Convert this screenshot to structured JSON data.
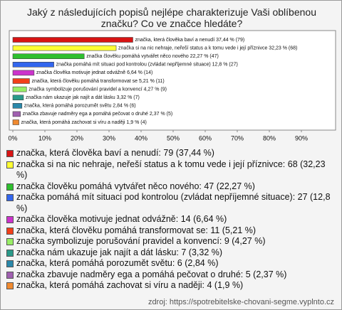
{
  "chart_data": {
    "type": "bar",
    "title": "Jaký z následujících popisů nejlépe charakterizuje Vaši oblíbenou značku? Co ve značce hledáte?",
    "values": [
      37.44,
      32.23,
      22.27,
      12.8,
      6.64,
      5.21,
      4.27,
      3.32,
      2.84,
      2.37,
      1.9
    ],
    "value_labels": [
      "značka, která člověka baví a nenudí 37,44 % (79)",
      "značka si na nic nehraje, neřeší status a k tomu vede i její příznivce 32,23 % (68)",
      "značka člověku pomáhá vytvářet něco nového 22,27 % (47)",
      "značka pomáhá mít situaci pod kontrolou (zvládat nepříjemné situace) 12,8 % (27)",
      "značka člověka motivuje jednat odvážně 6,64 % (14)",
      "značka, která člověku pomáhá transformovat se 5,21 % (11)",
      "značka symbolizuje porušování pravidel a konvencí 4,27 % (9)",
      "značka nám ukazuje jak najít a dát lásku 3,32 % (7)",
      "značka, která pomáhá porozumět světu 2,84 % (6)",
      "značka zbavuje nadměry ega a pomáhá pečovat o druhé 2,37 % (5)",
      "značka, která pomáhá zachovat si víru a naději 1,9 % (4)"
    ],
    "colors": [
      "#d81414",
      "#ffff33",
      "#2fbf2f",
      "#3366ee",
      "#cc33cc",
      "#f2401a",
      "#99ee66",
      "#2a9a8a",
      "#2a88aa",
      "#a060b0",
      "#f08a30"
    ],
    "legend": [
      "značka, která člověka baví a nenudí: 79 (37,44 %)",
      "značka si na nic nehraje, neřeší status a k tomu vede i její příznivce: 68 (32,23 %)",
      "značka člověku pomáhá vytvářet něco nového: 47 (22,27 %)",
      "značka pomáhá mít situaci pod kontrolou (zvládat nepříjemné situace): 27 (12,8 %)",
      "značka člověka motivuje jednat odvážně: 14 (6,64 %)",
      "značka, která člověku pomáhá transformovat se: 11 (5,21 %)",
      "značka symbolizuje porušování pravidel a konvencí: 9 (4,27 %)",
      "značka nám ukazuje jak najít a dát lásku: 7 (3,32 %)",
      "značka, která pomáhá porozumět světu: 6 (2,84 %)",
      "značka zbavuje nadměry ega a pomáhá pečovat o druhé: 5 (2,37 %)",
      "značka, která pomáhá zachovat si víru a naději: 4 (1,9 %)"
    ],
    "xlim": [
      0,
      100
    ],
    "xticks": [
      {
        "value": 0,
        "label": "0%"
      },
      {
        "value": 10,
        "label": "10%"
      },
      {
        "value": 20,
        "label": "20%"
      },
      {
        "value": 30,
        "label": "30%"
      },
      {
        "value": 40,
        "label": "40%"
      },
      {
        "value": 50,
        "label": "50%"
      },
      {
        "value": 60,
        "label": "60%"
      },
      {
        "value": 70,
        "label": "70%"
      },
      {
        "value": 80,
        "label": "80%"
      },
      {
        "value": 90,
        "label": "90%"
      }
    ],
    "source": "zdroj: https://spotrebitelske-chovani-segme.vyplnto.cz"
  }
}
